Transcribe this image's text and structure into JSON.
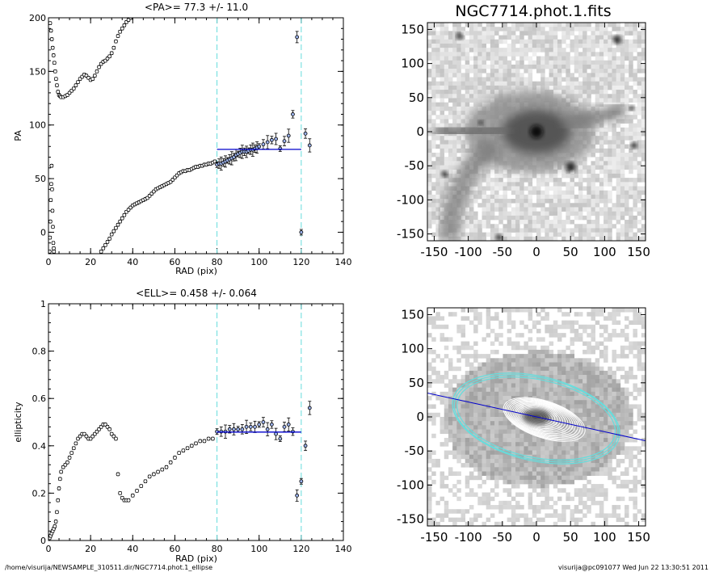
{
  "footer": {
    "path": "/home/visurija/NEWSAMPLE_310511.dir/NGC7714.phot.1_ellipse",
    "signature": "visurija@pc091077  Wed Jun 22 13:30:51 2011"
  },
  "colors": {
    "axis": "#000000",
    "data": "#000000",
    "fit_line": "#0000cc",
    "marker_fill": "#9ab0e8",
    "bound_lines": "#66dddd",
    "contours": "#ffffff",
    "outer_isophote": "#66dddd"
  },
  "chart_data": [
    {
      "id": "pa_profile",
      "type": "scatter",
      "title": "<PA>=  77.3 +/-  11.0",
      "xlabel": "RAD (pix)",
      "ylabel": "PA",
      "xlim": [
        0,
        140
      ],
      "ylim": [
        -20,
        200
      ],
      "xticks": [
        0,
        20,
        40,
        60,
        80,
        100,
        120,
        140
      ],
      "yticks": [
        0,
        50,
        100,
        150,
        200
      ],
      "vlines_dashed": [
        80,
        120
      ],
      "fit": {
        "value": 77.3,
        "error": 11.0,
        "x_range": [
          80,
          120
        ]
      },
      "series": [
        {
          "values": [
            [
              0.5,
              -18
            ],
            [
              0.7,
              -5
            ],
            [
              0.9,
              10
            ],
            [
              1.1,
              30
            ],
            [
              1.3,
              45
            ],
            [
              1.5,
              62
            ],
            [
              1.7,
              40
            ],
            [
              1.9,
              20
            ],
            [
              2.1,
              5
            ],
            [
              2.3,
              -10
            ],
            [
              2.5,
              -15
            ],
            [
              2.6,
              -18
            ]
          ]
        },
        {
          "values": [
            [
              0.8,
              195
            ],
            [
              1.2,
              188
            ],
            [
              1.6,
              180
            ],
            [
              2,
              172
            ],
            [
              2.4,
              165
            ],
            [
              2.8,
              158
            ],
            [
              3.2,
              150
            ],
            [
              3.6,
              143
            ],
            [
              4,
              137
            ],
            [
              4.5,
              131
            ],
            [
              5,
              128
            ],
            [
              5.5,
              127
            ],
            [
              6,
              126
            ],
            [
              7,
              126
            ],
            [
              8,
              127
            ],
            [
              9,
              128
            ],
            [
              10,
              130
            ],
            [
              11,
              132
            ],
            [
              12,
              134
            ],
            [
              13,
              137
            ],
            [
              14,
              140
            ],
            [
              15,
              143
            ],
            [
              16,
              145
            ],
            [
              17,
              147
            ],
            [
              18,
              146
            ],
            [
              19,
              144
            ],
            [
              20,
              142
            ],
            [
              21,
              143
            ],
            [
              22,
              146
            ],
            [
              23,
              150
            ],
            [
              24,
              154
            ],
            [
              25,
              157
            ],
            [
              26,
              159
            ],
            [
              27,
              160
            ],
            [
              28,
              162
            ],
            [
              29,
              164
            ],
            [
              30,
              167
            ],
            [
              31,
              172
            ],
            [
              32,
              178
            ],
            [
              33,
              183
            ],
            [
              34,
              187
            ],
            [
              35,
              190
            ],
            [
              36,
              193
            ],
            [
              37,
              196
            ],
            [
              38,
              198
            ],
            [
              39,
              200
            ]
          ]
        },
        {
          "values": [
            [
              25,
              -18
            ],
            [
              26,
              -15
            ],
            [
              27,
              -12
            ],
            [
              28,
              -9
            ],
            [
              29,
              -6
            ],
            [
              30,
              -2
            ],
            [
              31,
              1
            ],
            [
              32,
              4
            ],
            [
              33,
              7
            ],
            [
              34,
              10
            ],
            [
              35,
              13
            ],
            [
              36,
              16
            ],
            [
              37,
              19
            ],
            [
              38,
              21
            ],
            [
              39,
              23
            ],
            [
              40,
              25
            ],
            [
              41,
              26
            ],
            [
              42,
              27
            ],
            [
              43,
              28
            ],
            [
              44,
              29
            ],
            [
              45,
              30
            ],
            [
              46,
              31
            ],
            [
              47,
              32
            ],
            [
              48,
              34
            ],
            [
              49,
              36
            ],
            [
              50,
              38
            ],
            [
              51,
              40
            ],
            [
              52,
              41
            ],
            [
              53,
              42
            ],
            [
              54,
              43
            ],
            [
              55,
              44
            ],
            [
              56,
              45
            ],
            [
              57,
              46
            ],
            [
              58,
              47
            ],
            [
              59,
              49
            ],
            [
              60,
              51
            ],
            [
              61,
              53
            ],
            [
              62,
              55
            ],
            [
              63,
              56
            ],
            [
              64,
              57
            ],
            [
              65,
              57
            ],
            [
              66,
              58
            ],
            [
              67,
              58
            ],
            [
              68,
              59
            ],
            [
              69,
              60
            ],
            [
              70,
              61
            ],
            [
              71,
              61
            ],
            [
              72,
              62
            ],
            [
              73,
              62
            ],
            [
              74,
              63
            ],
            [
              75,
              63
            ],
            [
              76,
              64
            ],
            [
              77,
              64
            ],
            [
              78,
              65
            ],
            [
              79,
              66
            ]
          ]
        },
        {
          "values": [
            [
              80,
              63
            ],
            [
              81,
              64
            ],
            [
              82,
              64
            ],
            [
              83,
              65
            ],
            [
              84,
              66
            ],
            [
              85,
              67
            ],
            [
              86,
              68
            ],
            [
              87,
              69
            ],
            [
              88,
              70
            ],
            [
              89,
              72
            ],
            [
              90,
              73
            ],
            [
              91,
              74
            ],
            [
              92,
              75
            ],
            [
              93,
              75
            ],
            [
              94,
              75
            ],
            [
              95,
              76
            ],
            [
              96,
              77
            ],
            [
              97,
              77
            ],
            [
              98,
              78
            ],
            [
              99,
              79
            ],
            [
              100,
              80
            ],
            [
              102,
              82
            ],
            [
              104,
              84
            ],
            [
              106,
              86
            ],
            [
              108,
              87
            ],
            [
              110,
              78
            ],
            [
              112,
              85
            ],
            [
              114,
              90
            ],
            [
              116,
              110
            ],
            [
              118,
              182
            ],
            [
              120,
              0
            ],
            [
              122,
              92
            ],
            [
              124,
              81
            ]
          ]
        }
      ]
    },
    {
      "id": "ellipticity_profile",
      "type": "scatter",
      "title": "<ELL>= 0.458 +/-  0.064",
      "xlabel": "RAD (pix)",
      "ylabel": "ellipticity",
      "xlim": [
        0,
        140
      ],
      "ylim": [
        0.0,
        1.0
      ],
      "xticks": [
        0,
        20,
        40,
        60,
        80,
        100,
        120,
        140
      ],
      "yticks": [
        0.0,
        0.2,
        0.4,
        0.6,
        0.8,
        1.0
      ],
      "vlines_dashed": [
        80,
        120
      ],
      "fit": {
        "value": 0.458,
        "error": 0.064,
        "x_range": [
          80,
          120
        ]
      },
      "series": [
        {
          "values": [
            [
              0.5,
              0.01
            ],
            [
              1,
              0.02
            ],
            [
              1.5,
              0.03
            ],
            [
              2,
              0.04
            ],
            [
              2.5,
              0.05
            ],
            [
              3,
              0.06
            ],
            [
              3.5,
              0.08
            ],
            [
              4,
              0.12
            ],
            [
              4.5,
              0.17
            ],
            [
              5,
              0.22
            ],
            [
              5.5,
              0.26
            ],
            [
              6,
              0.29
            ],
            [
              7,
              0.31
            ],
            [
              8,
              0.32
            ],
            [
              9,
              0.33
            ],
            [
              10,
              0.35
            ],
            [
              11,
              0.37
            ],
            [
              12,
              0.39
            ],
            [
              13,
              0.41
            ],
            [
              14,
              0.43
            ],
            [
              15,
              0.44
            ],
            [
              16,
              0.45
            ],
            [
              17,
              0.45
            ],
            [
              18,
              0.44
            ],
            [
              19,
              0.43
            ],
            [
              20,
              0.43
            ],
            [
              21,
              0.44
            ],
            [
              22,
              0.45
            ],
            [
              23,
              0.46
            ],
            [
              24,
              0.47
            ],
            [
              25,
              0.48
            ],
            [
              26,
              0.49
            ],
            [
              27,
              0.49
            ],
            [
              28,
              0.48
            ],
            [
              29,
              0.47
            ],
            [
              30,
              0.45
            ],
            [
              31,
              0.44
            ],
            [
              32,
              0.43
            ],
            [
              33,
              0.28
            ],
            [
              34,
              0.2
            ],
            [
              35,
              0.18
            ],
            [
              36,
              0.17
            ],
            [
              37,
              0.17
            ],
            [
              38,
              0.17
            ],
            [
              40,
              0.19
            ],
            [
              42,
              0.21
            ],
            [
              44,
              0.23
            ],
            [
              46,
              0.25
            ],
            [
              48,
              0.27
            ],
            [
              50,
              0.28
            ],
            [
              52,
              0.29
            ],
            [
              54,
              0.3
            ],
            [
              56,
              0.31
            ],
            [
              58,
              0.33
            ],
            [
              60,
              0.35
            ],
            [
              62,
              0.37
            ],
            [
              64,
              0.38
            ],
            [
              66,
              0.39
            ],
            [
              68,
              0.4
            ],
            [
              70,
              0.41
            ],
            [
              72,
              0.42
            ],
            [
              74,
              0.42
            ],
            [
              76,
              0.43
            ],
            [
              78,
              0.43
            ]
          ]
        },
        {
          "values": [
            [
              80,
              0.46
            ],
            [
              82,
              0.46
            ],
            [
              84,
              0.46
            ],
            [
              86,
              0.47
            ],
            [
              88,
              0.47
            ],
            [
              90,
              0.47
            ],
            [
              92,
              0.47
            ],
            [
              94,
              0.48
            ],
            [
              96,
              0.48
            ],
            [
              98,
              0.48
            ],
            [
              100,
              0.49
            ],
            [
              102,
              0.5
            ],
            [
              104,
              0.47
            ],
            [
              106,
              0.49
            ],
            [
              108,
              0.45
            ],
            [
              110,
              0.43
            ],
            [
              112,
              0.48
            ],
            [
              114,
              0.49
            ],
            [
              116,
              0.46
            ],
            [
              118,
              0.19
            ],
            [
              120,
              0.25
            ],
            [
              122,
              0.4
            ],
            [
              124,
              0.56
            ]
          ]
        }
      ]
    },
    {
      "id": "image_top",
      "type": "heatmap",
      "title": "NGC7714.phot.1.fits",
      "xlim": [
        -160,
        160
      ],
      "ylim": [
        -160,
        160
      ],
      "xticks": [
        -150,
        -100,
        -50,
        0,
        50,
        100,
        150
      ],
      "yticks": [
        -150,
        -100,
        -50,
        0,
        50,
        100,
        150
      ]
    },
    {
      "id": "image_bottom",
      "type": "heatmap",
      "title": "",
      "xlim": [
        -160,
        160
      ],
      "ylim": [
        -160,
        160
      ],
      "xticks": [
        -150,
        -100,
        -50,
        0,
        50,
        100,
        150
      ],
      "yticks": [
        -150,
        -100,
        -50,
        0,
        50,
        100,
        150
      ],
      "major_axis_line": {
        "from": [
          -160,
          35
        ],
        "to": [
          160,
          -35
        ]
      }
    }
  ]
}
